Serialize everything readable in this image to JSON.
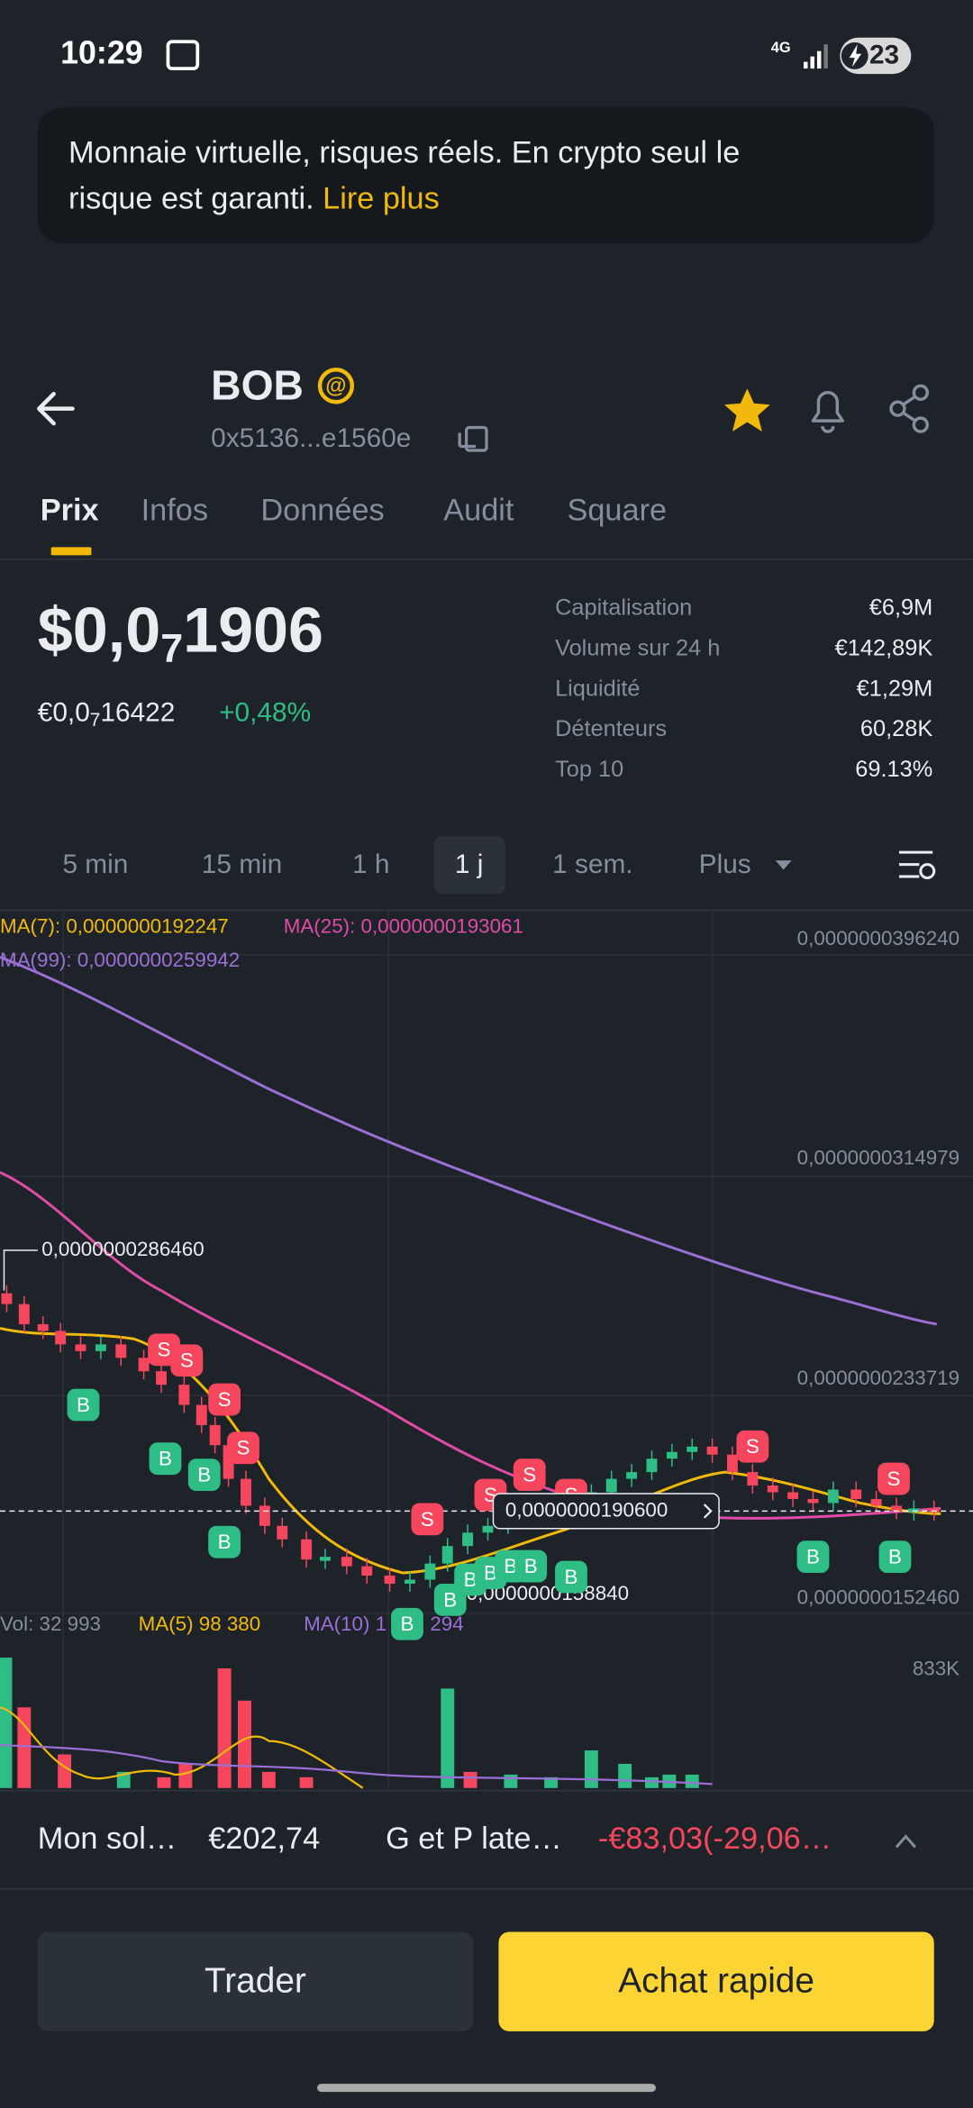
{
  "status_bar": {
    "time": "10:29",
    "network": "4G",
    "battery": "23"
  },
  "banner": {
    "line1": "Monnaie virtuelle, risques réels. En crypto seul le",
    "line2": "risque est garanti.",
    "link": "Lire plus"
  },
  "header": {
    "symbol": "BOB",
    "badge": "@",
    "address": "0x5136...e1560e"
  },
  "tabs": [
    "Prix",
    "Infos",
    "Données",
    "Audit",
    "Square"
  ],
  "price": {
    "usd_prefix": "$0,0",
    "usd_zeros": "7",
    "usd_digits": "1906",
    "eur_prefix": "€0,0",
    "eur_zeros": "7",
    "eur_digits": "16422",
    "change": "+0,48%"
  },
  "stats": [
    {
      "label": "Capitalisation",
      "value": "€6,9M"
    },
    {
      "label": "Volume sur 24 h",
      "value": "€142,89K"
    },
    {
      "label": "Liquidité",
      "value": "€1,29M"
    },
    {
      "label": "Détenteurs",
      "value": "60,28K"
    },
    {
      "label": "Top 10",
      "value": "69.13%"
    }
  ],
  "intervals": [
    "5 min",
    "15 min",
    "1 h",
    "1 j",
    "1 sem.",
    "Plus"
  ],
  "chart": {
    "ma": [
      "MA(7): 0,0000000192247",
      "MA(25): 0,0000000193061",
      "MA(99): 0,0000000259942"
    ],
    "price_axis": [
      "0,0000000396240",
      "0,0000000314979",
      "0,0000000233719",
      "0,0000000152460"
    ],
    "high_label": "0,0000000286460",
    "low_label": "0,0000000158840",
    "current_price": "0,0000000190600",
    "volume_legend": [
      "Vol: 32 993",
      "MA(5) 98 380",
      "MA(10) 1",
      "294"
    ],
    "volume_axis": "833K",
    "markers": [
      "B",
      "B",
      "B",
      "B",
      "B",
      "B",
      "B",
      "B",
      "B",
      "B",
      "B",
      "B",
      "B",
      "S",
      "S",
      "S",
      "S",
      "S",
      "S",
      "S",
      "S",
      "S",
      "S"
    ]
  },
  "position": {
    "balance_label": "Mon sol…",
    "balance": "€202,74",
    "pnl_label": "G et P late…",
    "pnl": "-€83,03(-29,06…"
  },
  "buttons": {
    "trade": "Trader",
    "quick_buy": "Achat rapide"
  }
}
